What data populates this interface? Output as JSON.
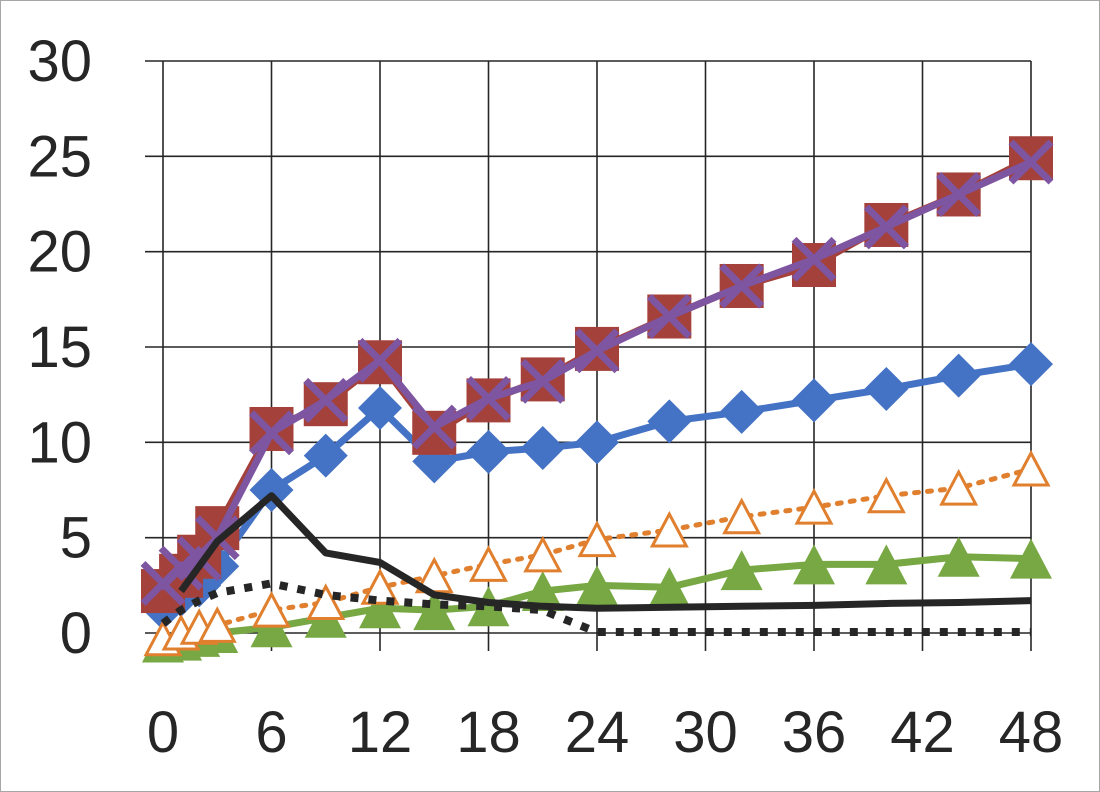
{
  "chart_data": {
    "type": "line",
    "title": "",
    "xlabel": "",
    "ylabel": "",
    "xlim": [
      0,
      48
    ],
    "ylim": [
      0,
      30
    ],
    "x_ticks": [
      "0",
      "6",
      "12",
      "18",
      "24",
      "30",
      "36",
      "42",
      "48"
    ],
    "y_ticks": [
      "0",
      "5",
      "10",
      "15",
      "20",
      "25",
      "30"
    ],
    "grid": true,
    "legend": "none",
    "series": [
      {
        "color": "#4472c4",
        "marker": "diamond",
        "line": "solid",
        "x": [
          0,
          1,
          2,
          3,
          6,
          9,
          12,
          15,
          18,
          21,
          24,
          28,
          32,
          36,
          40,
          44,
          48
        ],
        "y": [
          1.3,
          2.0,
          2.5,
          3.5,
          7.5,
          9.3,
          11.8,
          9.0,
          9.5,
          9.7,
          10.0,
          11.1,
          11.6,
          12.2,
          12.8,
          13.5,
          14.1
        ]
      },
      {
        "color": "#a5413b",
        "marker": "square",
        "line": "solid",
        "x": [
          0,
          1,
          2,
          3,
          6,
          9,
          12,
          15,
          18,
          21,
          24,
          28,
          32,
          36,
          40,
          44,
          48
        ],
        "y": [
          2.2,
          3.0,
          4.0,
          5.5,
          10.7,
          12.0,
          14.2,
          10.5,
          12.2,
          13.3,
          14.9,
          16.6,
          18.2,
          19.3,
          21.4,
          23.0,
          24.9
        ]
      },
      {
        "color": "#7d55a0",
        "marker": "x",
        "line": "solid",
        "x": [
          0,
          1,
          2,
          3,
          6,
          9,
          12,
          15,
          18,
          21,
          24,
          28,
          32,
          36,
          40,
          44,
          48
        ],
        "y": [
          2.6,
          3.4,
          3.9,
          5.0,
          10.5,
          12.2,
          14.3,
          10.8,
          12.3,
          13.2,
          14.8,
          16.6,
          18.2,
          19.6,
          21.3,
          23.0,
          24.7
        ]
      },
      {
        "color": "#77a843",
        "marker": "triangle-filled",
        "line": "solid",
        "x": [
          0,
          1,
          2,
          3,
          6,
          9,
          12,
          15,
          18,
          21,
          24,
          28,
          32,
          36,
          40,
          44,
          48
        ],
        "y": [
          -0.5,
          -0.4,
          -0.2,
          0.0,
          0.3,
          0.8,
          1.3,
          1.2,
          1.4,
          2.2,
          2.5,
          2.4,
          3.3,
          3.6,
          3.6,
          4.0,
          3.9
        ]
      },
      {
        "color": "#e07f2e",
        "marker": "triangle-open",
        "line": "dotted",
        "x": [
          0,
          1,
          2,
          3,
          6,
          9,
          12,
          15,
          18,
          21,
          24,
          28,
          32,
          36,
          40,
          44,
          48
        ],
        "y": [
          -0.3,
          0.0,
          0.3,
          0.4,
          1.2,
          1.6,
          2.4,
          3.0,
          3.6,
          4.1,
          4.9,
          5.4,
          6.1,
          6.6,
          7.2,
          7.6,
          8.6
        ]
      },
      {
        "color": "#262626",
        "marker": "none",
        "line": "solid",
        "x": [
          1,
          2,
          3,
          6,
          9,
          12,
          15,
          18,
          21,
          24,
          28,
          32,
          36,
          40,
          44,
          48
        ],
        "y": [
          2.2,
          3.5,
          4.8,
          7.2,
          4.2,
          3.7,
          2.0,
          1.6,
          1.4,
          1.3,
          1.35,
          1.4,
          1.45,
          1.55,
          1.6,
          1.7
        ]
      },
      {
        "color": "#262626",
        "marker": "none",
        "line": "dotted",
        "x": [
          0,
          1,
          2,
          3,
          6,
          9,
          12,
          15,
          18,
          21,
          22,
          24,
          28,
          32,
          36,
          40,
          44,
          48
        ],
        "y": [
          0.5,
          1.2,
          1.7,
          2.1,
          2.6,
          2.0,
          1.7,
          1.5,
          1.4,
          1.2,
          0.8,
          0.05,
          0.05,
          0.05,
          0.05,
          0.05,
          0.05,
          0.05
        ]
      }
    ]
  }
}
